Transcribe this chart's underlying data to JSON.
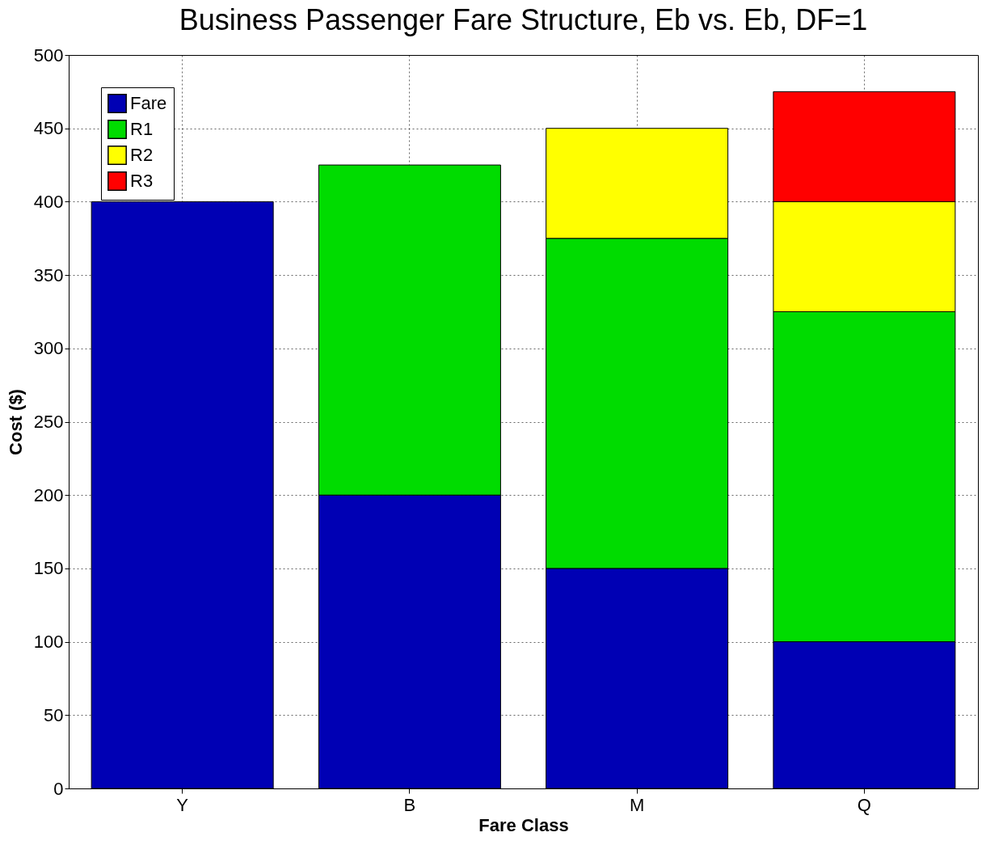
{
  "chart_data": {
    "type": "bar",
    "title": "Business Passenger Fare Structure, Eb vs. Eb, DF=1",
    "xlabel": "Fare Class",
    "ylabel": "Cost ($)",
    "categories": [
      "Y",
      "B",
      "M",
      "Q"
    ],
    "stacked": true,
    "series": [
      {
        "name": "Fare",
        "color": "#0000b4",
        "values": [
          400,
          200,
          150,
          100
        ]
      },
      {
        "name": "R1",
        "color": "#00dc00",
        "values": [
          null,
          225,
          225,
          225
        ]
      },
      {
        "name": "R2",
        "color": "#ffff00",
        "values": [
          null,
          null,
          75,
          75
        ]
      },
      {
        "name": "R3",
        "color": "#ff0000",
        "values": [
          null,
          null,
          null,
          75
        ]
      }
    ],
    "ylim": [
      0,
      500
    ],
    "yticks": [
      0,
      50,
      100,
      150,
      200,
      250,
      300,
      350,
      400,
      450,
      500
    ],
    "grid": true,
    "legend": "top left"
  }
}
